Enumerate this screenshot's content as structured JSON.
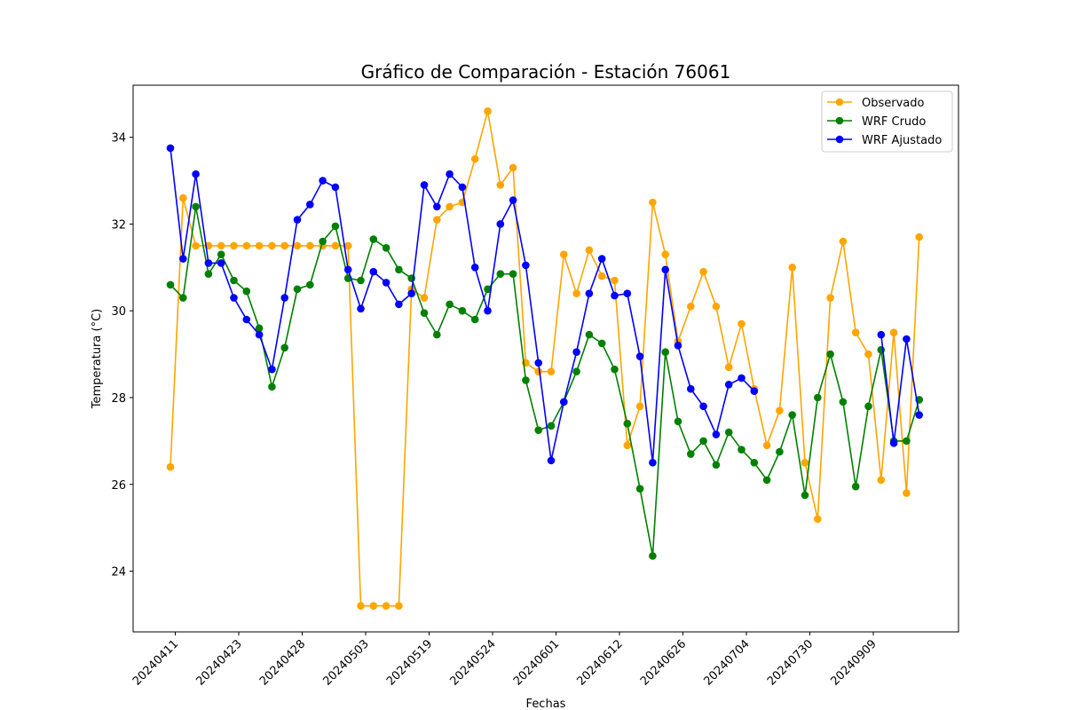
{
  "chart_data": {
    "type": "line",
    "title": "Gráfico de Comparación - Estación 76061",
    "xlabel": "Fechas",
    "ylabel": "Temperatura (°C)",
    "ylim": [
      22.6,
      35.2
    ],
    "yticks": [
      24,
      26,
      28,
      30,
      32,
      34
    ],
    "xticks": [
      "20240411",
      "20240423",
      "20240428",
      "20240503",
      "20240519",
      "20240524",
      "20240601",
      "20240612",
      "20240626",
      "20240704",
      "20240730",
      "20240909"
    ],
    "legend_position": "top-right",
    "grid": false,
    "series": [
      {
        "name": "Observado",
        "color": "#ffa500",
        "values": [
          26.4,
          32.6,
          31.5,
          31.5,
          31.5,
          31.5,
          31.5,
          31.5,
          31.5,
          31.5,
          31.5,
          31.5,
          31.5,
          31.5,
          31.5,
          23.2,
          23.2,
          23.2,
          23.2,
          30.5,
          30.3,
          32.1,
          32.4,
          32.5,
          33.5,
          34.6,
          32.9,
          33.3,
          28.8,
          28.6,
          28.6,
          31.3,
          30.4,
          31.4,
          30.8,
          30.7,
          26.9,
          27.8,
          32.5,
          31.3,
          29.3,
          30.1,
          30.9,
          30.1,
          28.7,
          29.7,
          28.2,
          26.9,
          27.7,
          31.0,
          26.5,
          25.2,
          30.3,
          31.6,
          29.5,
          29.0,
          26.1,
          29.5,
          25.8,
          31.7
        ]
      },
      {
        "name": "WRF Crudo",
        "color": "#008000",
        "values": [
          30.6,
          30.3,
          32.4,
          30.85,
          31.3,
          30.7,
          30.45,
          29.6,
          28.25,
          29.15,
          30.5,
          30.6,
          31.6,
          31.95,
          30.75,
          30.7,
          31.65,
          31.45,
          30.95,
          30.75,
          29.95,
          29.45,
          30.15,
          30.0,
          29.8,
          30.5,
          30.85,
          30.85,
          28.4,
          27.25,
          27.35,
          27.9,
          28.6,
          29.45,
          29.25,
          28.65,
          27.4,
          25.9,
          24.35,
          29.05,
          27.45,
          26.7,
          27.0,
          26.45,
          27.2,
          26.8,
          26.5,
          26.1,
          26.75,
          27.6,
          25.75,
          28.0,
          29.0,
          27.9,
          25.95,
          27.8,
          29.1,
          27.0,
          27.0,
          27.95
        ]
      },
      {
        "name": "WRF Ajustado",
        "color": "#0000ff",
        "values": [
          33.75,
          31.2,
          33.15,
          31.1,
          31.1,
          30.3,
          29.8,
          29.45,
          28.65,
          30.3,
          32.1,
          32.45,
          33.0,
          32.85,
          30.95,
          30.05,
          30.9,
          30.65,
          30.15,
          30.4,
          32.9,
          32.4,
          33.15,
          32.85,
          31.0,
          30.0,
          32.0,
          32.55,
          31.05,
          28.8,
          26.55,
          27.9,
          29.05,
          30.4,
          31.2,
          30.35,
          30.4,
          28.95,
          26.5,
          30.95,
          29.2,
          28.2,
          27.8,
          27.15,
          28.3,
          28.45,
          28.15,
          null,
          null,
          null,
          null,
          null,
          null,
          null,
          null,
          null,
          29.45,
          26.95,
          29.35,
          27.6
        ]
      }
    ]
  }
}
